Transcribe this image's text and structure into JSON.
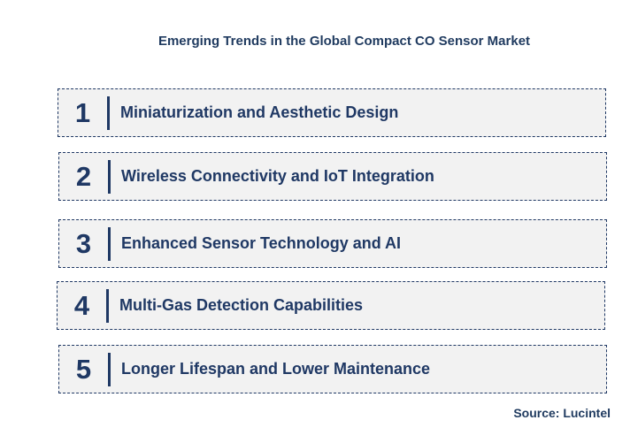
{
  "title": "Emerging Trends in the Global Compact CO Sensor Market",
  "trends": [
    {
      "number": "1",
      "label": "Miniaturization and Aesthetic Design"
    },
    {
      "number": "2",
      "label": "Wireless Connectivity and IoT Integration"
    },
    {
      "number": "3",
      "label": "Enhanced Sensor Technology and AI"
    },
    {
      "number": "4",
      "label": "Multi-Gas Detection Capabilities"
    },
    {
      "number": "5",
      "label": "Longer Lifespan and Lower Maintenance"
    }
  ],
  "source": "Source: Lucintel",
  "colors": {
    "accent": "#1f3864",
    "box_fill": "#f2f2f2"
  }
}
